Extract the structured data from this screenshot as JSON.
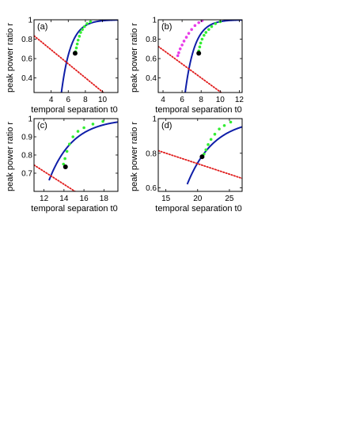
{
  "chart_data": [
    {
      "panel_label": "(a)",
      "type": "line",
      "xlabel": "temporal separation t0",
      "ylabel": "peak power ratio r",
      "xlim": [
        2.0,
        11.8
      ],
      "ylim": [
        0.25,
        1.0
      ],
      "xticks": [
        4,
        6,
        8,
        10
      ],
      "yticks": [
        0.4,
        0.6,
        0.8,
        1.0
      ],
      "xtick_labels": [
        "4",
        "6",
        "8",
        "10"
      ],
      "ytick_labels": [
        "0.4",
        "0.6",
        "0.8",
        "1"
      ],
      "blue_curve": {
        "x0": 4.95,
        "A": 0.94,
        "k": 0.9
      },
      "red_line": {
        "points": [
          [
            2.0,
            0.835
          ],
          [
            10.1,
            0.25
          ]
        ]
      },
      "green_points": [
        [
          6.85,
          0.67
        ],
        [
          6.95,
          0.71
        ],
        [
          7.05,
          0.75
        ],
        [
          7.15,
          0.79
        ],
        [
          7.3,
          0.83
        ],
        [
          7.45,
          0.87
        ],
        [
          7.65,
          0.9
        ],
        [
          7.9,
          0.93
        ],
        [
          8.2,
          0.96
        ],
        [
          8.6,
          0.98
        ]
      ],
      "magenta_points": [],
      "black_point": [
        6.8,
        0.655
      ]
    },
    {
      "panel_label": "(b)",
      "type": "line",
      "xlabel": "temporal separation t0",
      "ylabel": "peak power ratio r",
      "xlim": [
        3.5,
        12.3
      ],
      "ylim": [
        0.25,
        1.0
      ],
      "xticks": [
        4,
        6,
        8,
        10,
        12
      ],
      "yticks": [
        0.4,
        0.6,
        0.8,
        1.0
      ],
      "xtick_labels": [
        "4",
        "6",
        "8",
        "10",
        "12"
      ],
      "ytick_labels": [
        "0.4",
        "0.6",
        "0.8",
        "1"
      ],
      "blue_curve": {
        "x0": 6.1,
        "A": 0.94,
        "k": 1.0
      },
      "red_line": {
        "points": [
          [
            3.5,
            0.725
          ],
          [
            10.1,
            0.25
          ]
        ]
      },
      "green_points": [
        [
          7.75,
          0.68
        ],
        [
          7.85,
          0.72
        ],
        [
          7.95,
          0.76
        ],
        [
          8.1,
          0.8
        ],
        [
          8.3,
          0.84
        ],
        [
          8.5,
          0.87
        ],
        [
          8.8,
          0.9
        ],
        [
          9.1,
          0.93
        ],
        [
          9.5,
          0.96
        ],
        [
          10.0,
          0.98
        ]
      ],
      "magenta_points": [
        [
          5.55,
          0.63
        ],
        [
          5.65,
          0.66
        ],
        [
          5.8,
          0.7
        ],
        [
          6.0,
          0.74
        ],
        [
          6.2,
          0.78
        ],
        [
          6.45,
          0.82
        ],
        [
          6.7,
          0.86
        ],
        [
          7.0,
          0.9
        ],
        [
          7.35,
          0.94
        ],
        [
          7.75,
          0.97
        ],
        [
          8.1,
          0.99
        ]
      ],
      "black_point": [
        7.75,
        0.655
      ]
    },
    {
      "panel_label": "(c)",
      "type": "line",
      "xlabel": "temporal separation t0",
      "ylabel": "peak power ratio r",
      "xlim": [
        11.0,
        19.4
      ],
      "ylim": [
        0.6,
        1.0
      ],
      "xticks": [
        12,
        14,
        16,
        18
      ],
      "yticks": [
        0.7,
        0.8,
        0.9,
        1.0
      ],
      "xtick_labels": [
        "12",
        "14",
        "16",
        "18"
      ],
      "ytick_labels": [
        "0.7",
        "0.8",
        "0.9",
        "1"
      ],
      "blue_curve": {
        "x0": 12.5,
        "A": 0.34,
        "k": 0.42
      },
      "red_line": {
        "points": [
          [
            11.0,
            0.745
          ],
          [
            15.1,
            0.6
          ]
        ]
      },
      "green_points": [
        [
          13.95,
          0.75
        ],
        [
          14.1,
          0.78
        ],
        [
          14.3,
          0.82
        ],
        [
          14.55,
          0.86
        ],
        [
          14.9,
          0.9
        ],
        [
          15.4,
          0.93
        ],
        [
          16.0,
          0.95
        ],
        [
          16.9,
          0.97
        ],
        [
          17.9,
          0.985
        ]
      ],
      "magenta_points": [],
      "black_point": [
        14.15,
        0.735
      ]
    },
    {
      "panel_label": "(d)",
      "type": "line",
      "xlabel": "temporal separation t0",
      "ylabel": "peak power ratio r",
      "xlim": [
        13.8,
        27.0
      ],
      "ylim": [
        0.58,
        1.0
      ],
      "xticks": [
        15,
        20,
        25
      ],
      "yticks": [
        0.6,
        0.8,
        1.0
      ],
      "xtick_labels": [
        "15",
        "20",
        "25"
      ],
      "ytick_labels": [
        "0.6",
        "0.8",
        "1"
      ],
      "blue_curve": {
        "x0": 18.35,
        "A": 0.38,
        "k": 0.24
      },
      "red_line": {
        "points": [
          [
            13.8,
            0.815
          ],
          [
            27.0,
            0.655
          ]
        ]
      },
      "green_points": [
        [
          21.0,
          0.795
        ],
        [
          21.3,
          0.82
        ],
        [
          21.65,
          0.85
        ],
        [
          22.1,
          0.88
        ],
        [
          22.7,
          0.91
        ],
        [
          23.4,
          0.94
        ],
        [
          24.2,
          0.96
        ],
        [
          25.2,
          0.98
        ]
      ],
      "magenta_points": [],
      "black_point": [
        20.7,
        0.78
      ]
    }
  ]
}
